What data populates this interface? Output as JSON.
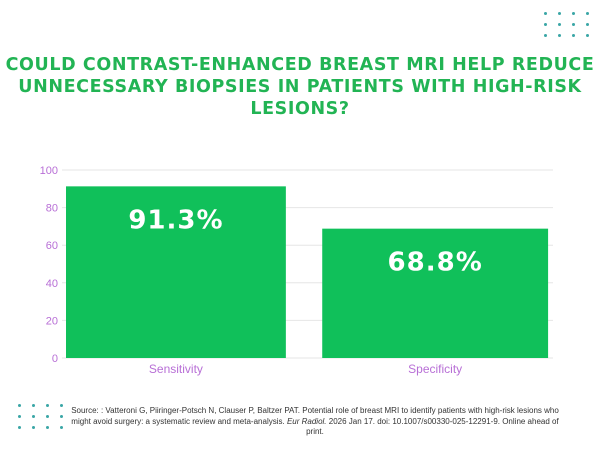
{
  "title": "COULD CONTRAST-ENHANCED BREAST MRI HELP REDUCE UNNECESSARY BIOPSIES IN PATIENTS WITH HIGH-RISK LESIONS?",
  "source": {
    "part1": "Source: : Vatteroni G, Piiringer-Potsch N, Clauser P, Baltzer PAT. Potential role of breast MRI to identify patients with high-risk lesions who might avoid surgery: a systematic review and meta-analysis. ",
    "journal": "Eur Radiol.",
    "part2": " 2026 Jan 17. doi: 10.1007/s00330-025-12291-9. Online ahead of print."
  },
  "colors": {
    "title": "#22b454",
    "bar": "#10c05a",
    "axis_text": "#b86fd6",
    "grid": "#e6e6e6",
    "dots": "#3aa6a6"
  },
  "chart_data": {
    "type": "bar",
    "categories": [
      "Sensitivity",
      "Specificity"
    ],
    "values": [
      91.3,
      68.8
    ],
    "value_labels": [
      "91.3%",
      "68.8%"
    ],
    "yticks": [
      0,
      20,
      40,
      60,
      80,
      100
    ],
    "ylim": [
      0,
      100
    ],
    "grid": true,
    "title": "",
    "xlabel": "",
    "ylabel": ""
  }
}
